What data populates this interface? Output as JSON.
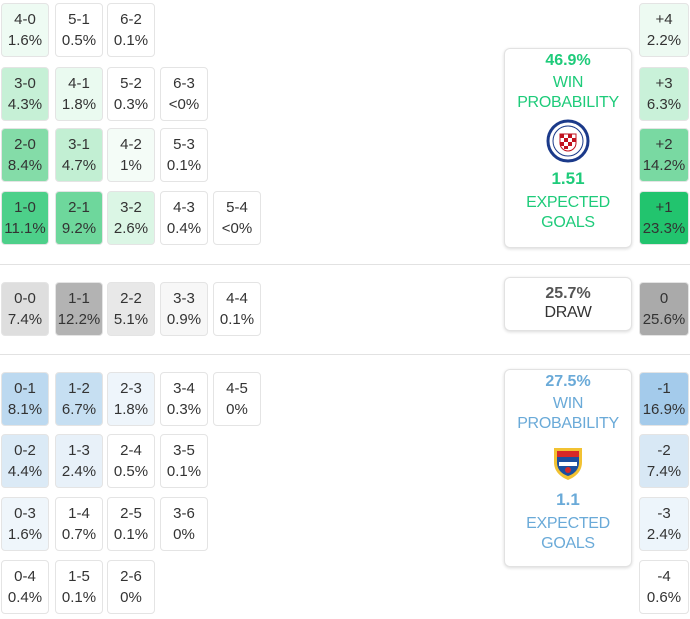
{
  "home": {
    "win_pct": "46.9%",
    "win_label": "WIN PROBABILITY",
    "xg": "1.51",
    "xg_label": "EXPECTED GOALS",
    "color": "#1ecb7a",
    "crest_icon": "shield-crest-red-white-blue"
  },
  "draw": {
    "pct": "25.7%",
    "label": "DRAW"
  },
  "away": {
    "win_pct": "27.5%",
    "win_label": "WIN PROBABILITY",
    "xg": "1.1",
    "xg_label": "EXPECTED GOALS",
    "color": "#6aaad8",
    "crest_icon": "shield-crest-blue-red"
  },
  "home_scores": [
    {
      "score": "4-0",
      "pct": "1.6%",
      "col": 0,
      "row": 0,
      "bg": "#eefbf3"
    },
    {
      "score": "5-1",
      "pct": "0.5%",
      "col": 1,
      "row": 0,
      "bg": "#ffffff"
    },
    {
      "score": "6-2",
      "pct": "0.1%",
      "col": 2,
      "row": 0,
      "bg": "#ffffff"
    },
    {
      "score": "3-0",
      "pct": "4.3%",
      "col": 0,
      "row": 1,
      "bg": "#c6f0d6"
    },
    {
      "score": "4-1",
      "pct": "1.8%",
      "col": 1,
      "row": 1,
      "bg": "#eafaf0"
    },
    {
      "score": "5-2",
      "pct": "0.3%",
      "col": 2,
      "row": 1,
      "bg": "#ffffff"
    },
    {
      "score": "6-3",
      "pct": "<0%",
      "col": 3,
      "row": 1,
      "bg": "#ffffff"
    },
    {
      "score": "2-0",
      "pct": "8.4%",
      "col": 0,
      "row": 2,
      "bg": "#84dca8"
    },
    {
      "score": "3-1",
      "pct": "4.7%",
      "col": 1,
      "row": 2,
      "bg": "#c2efd3"
    },
    {
      "score": "4-2",
      "pct": "1%",
      "col": 2,
      "row": 2,
      "bg": "#f4fcf7"
    },
    {
      "score": "5-3",
      "pct": "0.1%",
      "col": 3,
      "row": 2,
      "bg": "#ffffff"
    },
    {
      "score": "1-0",
      "pct": "11.1%",
      "col": 0,
      "row": 3,
      "bg": "#4dd08a"
    },
    {
      "score": "2-1",
      "pct": "9.2%",
      "col": 1,
      "row": 3,
      "bg": "#6ed79c"
    },
    {
      "score": "3-2",
      "pct": "2.6%",
      "col": 2,
      "row": 3,
      "bg": "#dbf6e5"
    },
    {
      "score": "4-3",
      "pct": "0.4%",
      "col": 3,
      "row": 3,
      "bg": "#ffffff"
    },
    {
      "score": "5-4",
      "pct": "<0%",
      "col": 4,
      "row": 3,
      "bg": "#ffffff"
    }
  ],
  "draw_scores": [
    {
      "score": "0-0",
      "pct": "7.4%",
      "col": 0,
      "bg": "#dedede"
    },
    {
      "score": "1-1",
      "pct": "12.2%",
      "col": 1,
      "bg": "#b3b3b3"
    },
    {
      "score": "2-2",
      "pct": "5.1%",
      "col": 2,
      "bg": "#e8e8e8"
    },
    {
      "score": "3-3",
      "pct": "0.9%",
      "col": 3,
      "bg": "#f7f7f7"
    },
    {
      "score": "4-4",
      "pct": "0.1%",
      "col": 4,
      "bg": "#ffffff"
    }
  ],
  "away_scores": [
    {
      "score": "0-1",
      "pct": "8.1%",
      "col": 0,
      "row": 0,
      "bg": "#bcd9f0"
    },
    {
      "score": "1-2",
      "pct": "6.7%",
      "col": 1,
      "row": 0,
      "bg": "#c6dff2"
    },
    {
      "score": "2-3",
      "pct": "1.8%",
      "col": 2,
      "row": 0,
      "bg": "#eef5fb"
    },
    {
      "score": "3-4",
      "pct": "0.3%",
      "col": 3,
      "row": 0,
      "bg": "#ffffff"
    },
    {
      "score": "4-5",
      "pct": "0%",
      "col": 4,
      "row": 0,
      "bg": "#ffffff"
    },
    {
      "score": "0-2",
      "pct": "4.4%",
      "col": 0,
      "row": 1,
      "bg": "#dbeaf6"
    },
    {
      "score": "1-3",
      "pct": "2.4%",
      "col": 1,
      "row": 1,
      "bg": "#e8f1f9"
    },
    {
      "score": "2-4",
      "pct": "0.5%",
      "col": 2,
      "row": 1,
      "bg": "#ffffff"
    },
    {
      "score": "3-5",
      "pct": "0.1%",
      "col": 3,
      "row": 1,
      "bg": "#ffffff"
    },
    {
      "score": "0-3",
      "pct": "1.6%",
      "col": 0,
      "row": 2,
      "bg": "#eff6fb"
    },
    {
      "score": "1-4",
      "pct": "0.7%",
      "col": 1,
      "row": 2,
      "bg": "#ffffff"
    },
    {
      "score": "2-5",
      "pct": "0.1%",
      "col": 2,
      "row": 2,
      "bg": "#ffffff"
    },
    {
      "score": "3-6",
      "pct": "0%",
      "col": 3,
      "row": 2,
      "bg": "#ffffff"
    },
    {
      "score": "0-4",
      "pct": "0.4%",
      "col": 0,
      "row": 3,
      "bg": "#ffffff"
    },
    {
      "score": "1-5",
      "pct": "0.1%",
      "col": 1,
      "row": 3,
      "bg": "#ffffff"
    },
    {
      "score": "2-6",
      "pct": "0%",
      "col": 2,
      "row": 3,
      "bg": "#ffffff"
    }
  ],
  "goal_diff": [
    {
      "label": "+4",
      "pct": "2.2%",
      "bg": "#edfaf2"
    },
    {
      "label": "+3",
      "pct": "6.3%",
      "bg": "#c9f1d9"
    },
    {
      "label": "+2",
      "pct": "14.2%",
      "bg": "#79d9a2"
    },
    {
      "label": "+1",
      "pct": "23.3%",
      "bg": "#22c46e"
    },
    {
      "label": "0",
      "pct": "25.6%",
      "bg": "#aaaaaa"
    },
    {
      "label": "-1",
      "pct": "16.9%",
      "bg": "#a4cbeb"
    },
    {
      "label": "-2",
      "pct": "7.4%",
      "bg": "#d8e8f5"
    },
    {
      "label": "-3",
      "pct": "2.4%",
      "bg": "#edf5fb"
    },
    {
      "label": "-4",
      "pct": "0.6%",
      "bg": "#ffffff"
    }
  ]
}
